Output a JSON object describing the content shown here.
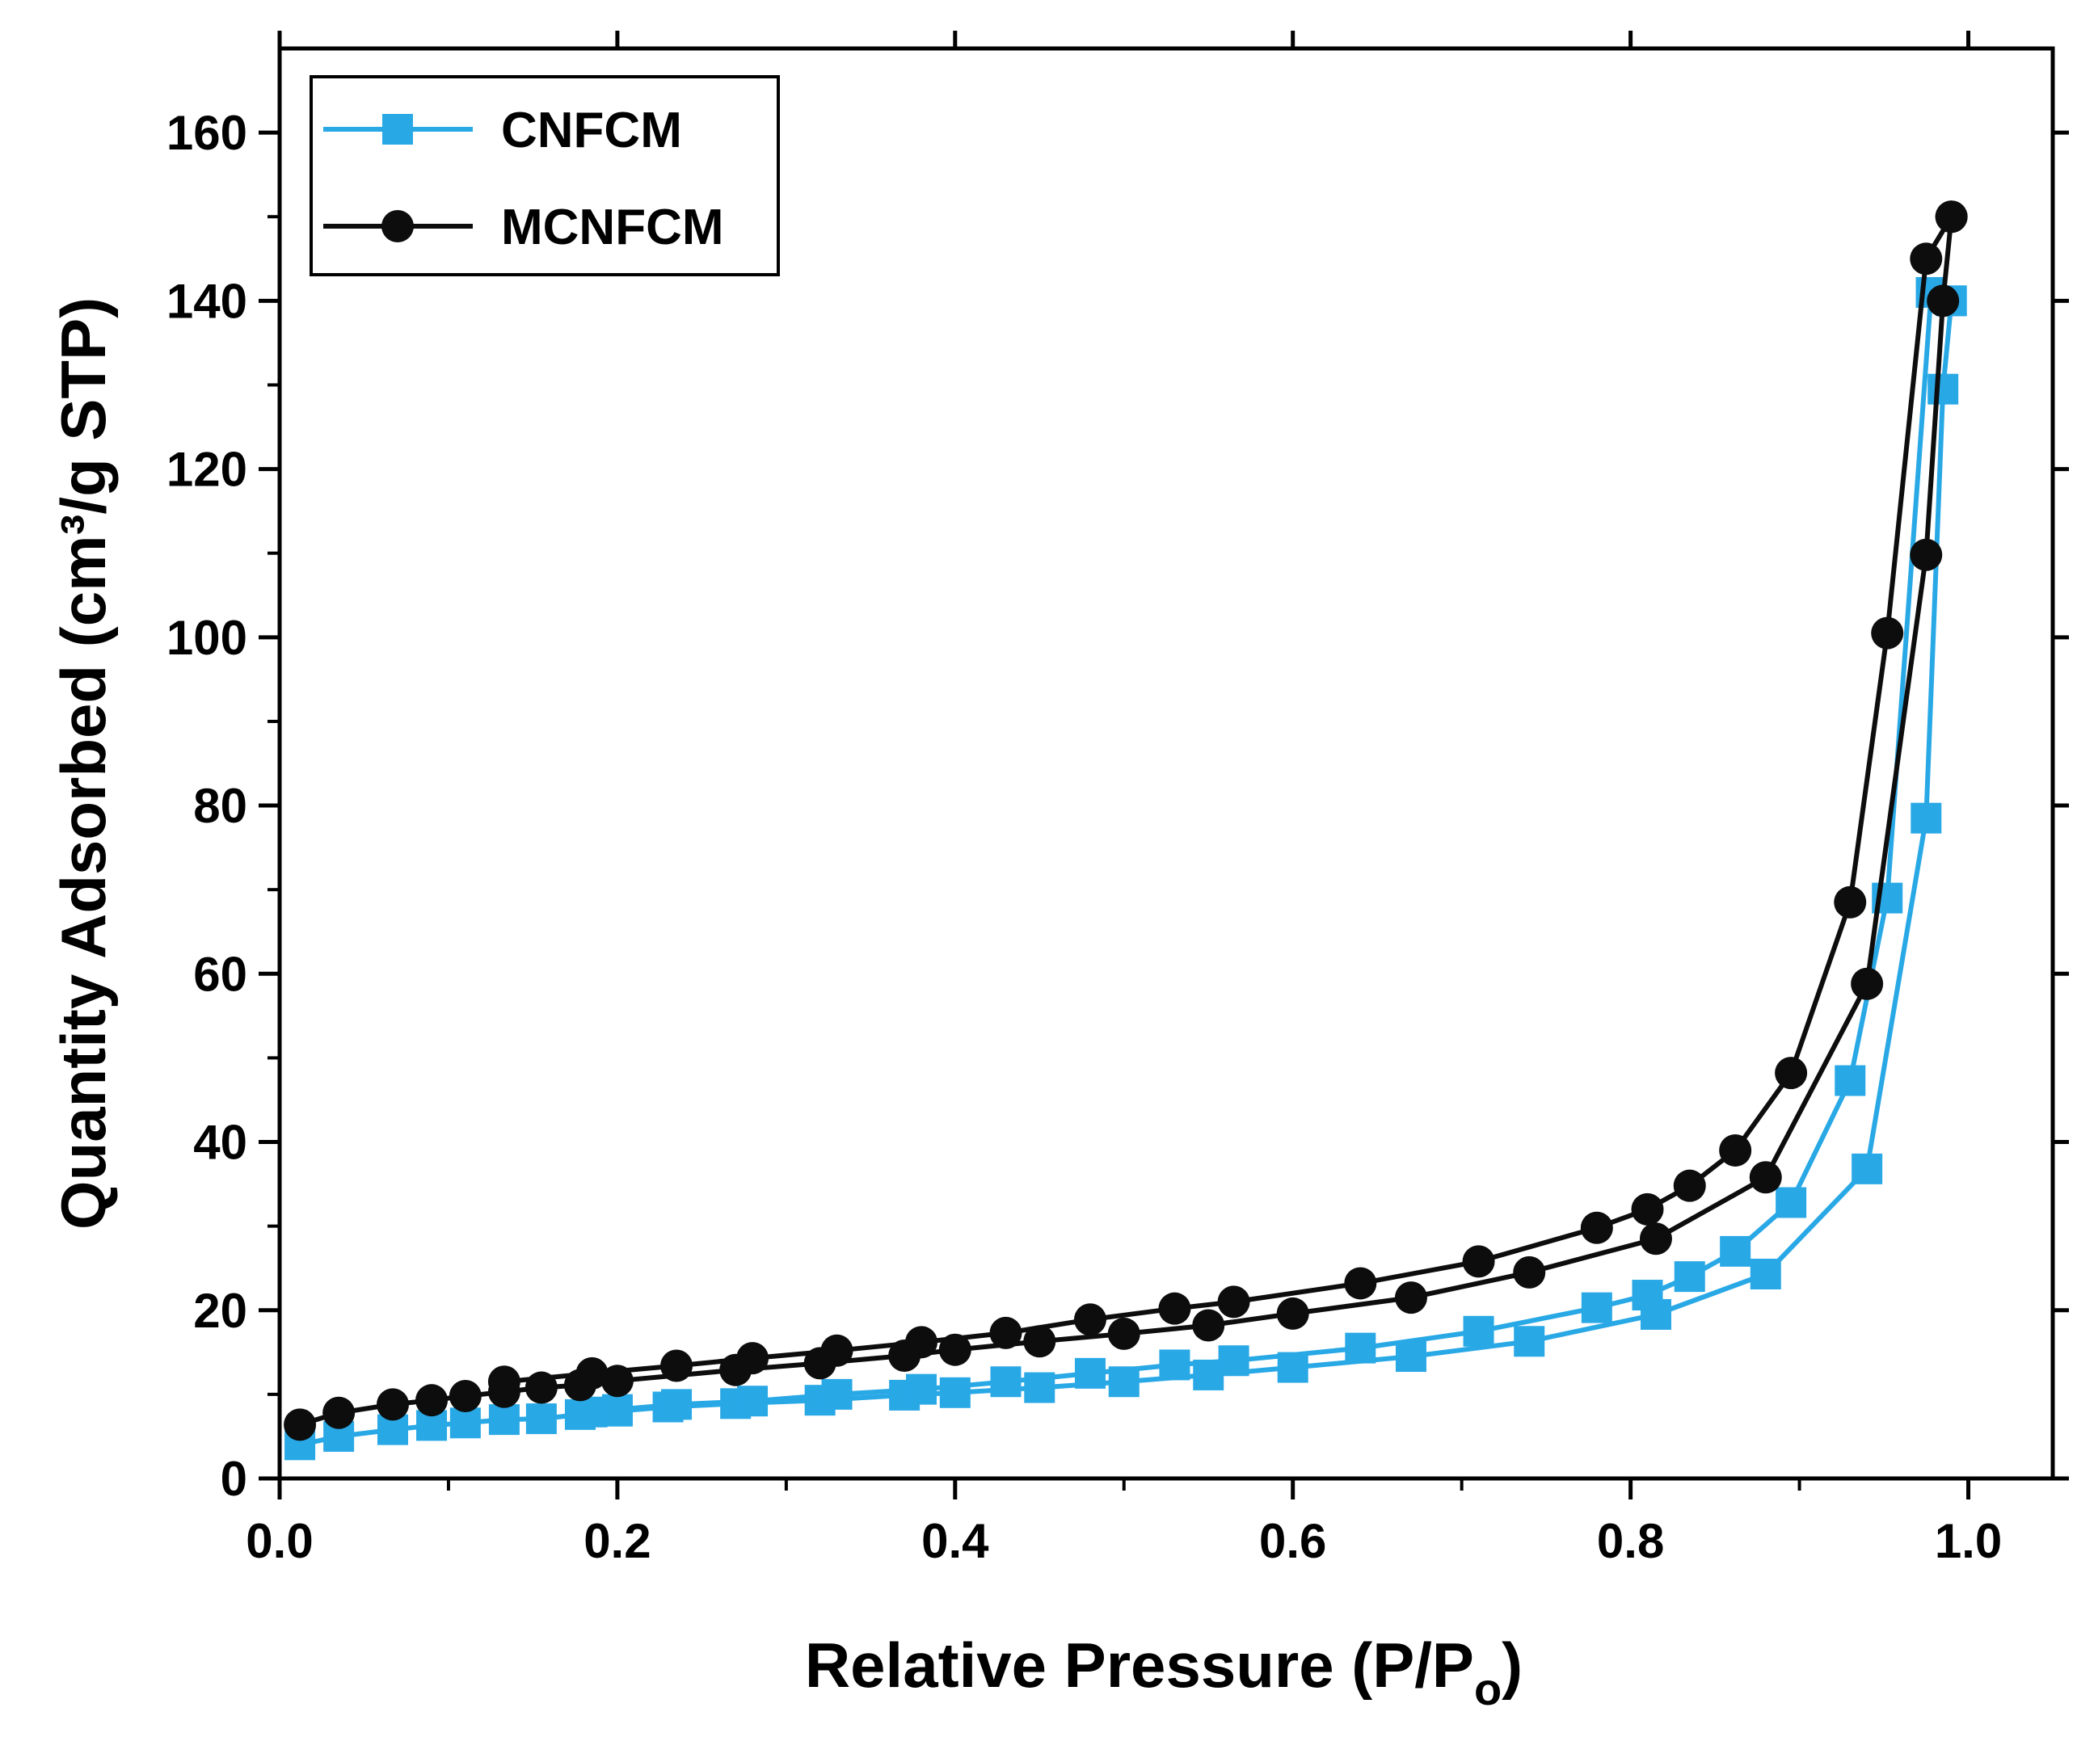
{
  "chart_data": {
    "type": "line",
    "title": "",
    "xlabel": "Relative Pressure (P/P",
    "xlabel_subscript": "o",
    "xlabel_close": ")",
    "ylabel": "Quantity Adsorbed (cm³/g STP)",
    "xlim": [
      0.0,
      1.05
    ],
    "ylim": [
      0,
      170
    ],
    "xticks": [
      0.0,
      0.2,
      0.4,
      0.6,
      0.8,
      1.0
    ],
    "xtick_labels": [
      "0.0",
      "0.2",
      "0.4",
      "0.6",
      "0.8",
      "1.0"
    ],
    "yticks": [
      0,
      20,
      40,
      60,
      80,
      100,
      120,
      140,
      160
    ],
    "ytick_labels": [
      "0",
      "20",
      "40",
      "60",
      "80",
      "100",
      "120",
      "140",
      "160"
    ],
    "grid": false,
    "legend_position": "top-left",
    "series": [
      {
        "name": "CNFCM",
        "color": "#29a8e6",
        "marker": "square",
        "adsorption": [
          {
            "x": 0.012,
            "y": 4.0
          },
          {
            "x": 0.035,
            "y": 5.0
          },
          {
            "x": 0.067,
            "y": 5.8
          },
          {
            "x": 0.09,
            "y": 6.3
          },
          {
            "x": 0.11,
            "y": 6.6
          },
          {
            "x": 0.133,
            "y": 7.0
          },
          {
            "x": 0.155,
            "y": 7.1
          },
          {
            "x": 0.178,
            "y": 7.6
          },
          {
            "x": 0.2,
            "y": 8.0
          },
          {
            "x": 0.23,
            "y": 8.5
          },
          {
            "x": 0.27,
            "y": 8.9
          },
          {
            "x": 0.32,
            "y": 9.3
          },
          {
            "x": 0.37,
            "y": 9.9
          },
          {
            "x": 0.4,
            "y": 10.2
          },
          {
            "x": 0.45,
            "y": 10.8
          },
          {
            "x": 0.5,
            "y": 11.5
          },
          {
            "x": 0.55,
            "y": 12.3
          },
          {
            "x": 0.6,
            "y": 13.2
          },
          {
            "x": 0.67,
            "y": 14.5
          },
          {
            "x": 0.74,
            "y": 16.3
          },
          {
            "x": 0.815,
            "y": 19.5
          },
          {
            "x": 0.88,
            "y": 24.3
          },
          {
            "x": 0.94,
            "y": 36.8
          },
          {
            "x": 0.975,
            "y": 78.5
          },
          {
            "x": 0.985,
            "y": 129.5
          },
          {
            "x": 0.99,
            "y": 140.0
          }
        ],
        "desorption": [
          {
            "x": 0.99,
            "y": 140.0
          },
          {
            "x": 0.978,
            "y": 141.0
          },
          {
            "x": 0.952,
            "y": 69.0
          },
          {
            "x": 0.93,
            "y": 47.3
          },
          {
            "x": 0.895,
            "y": 32.8
          },
          {
            "x": 0.862,
            "y": 27.0
          },
          {
            "x": 0.835,
            "y": 24.0
          },
          {
            "x": 0.81,
            "y": 21.8
          },
          {
            "x": 0.78,
            "y": 20.3
          },
          {
            "x": 0.71,
            "y": 17.5
          },
          {
            "x": 0.64,
            "y": 15.5
          },
          {
            "x": 0.565,
            "y": 14.0
          },
          {
            "x": 0.53,
            "y": 13.5
          },
          {
            "x": 0.48,
            "y": 12.5
          },
          {
            "x": 0.43,
            "y": 11.5
          },
          {
            "x": 0.38,
            "y": 10.6
          },
          {
            "x": 0.33,
            "y": 10.0
          },
          {
            "x": 0.28,
            "y": 9.2
          },
          {
            "x": 0.235,
            "y": 8.8
          },
          {
            "x": 0.2,
            "y": 8.2
          },
          {
            "x": 0.185,
            "y": 7.9
          }
        ]
      },
      {
        "name": "MCNFCM",
        "color": "#0d0d0d",
        "marker": "circle",
        "adsorption": [
          {
            "x": 0.012,
            "y": 6.4
          },
          {
            "x": 0.035,
            "y": 7.8
          },
          {
            "x": 0.067,
            "y": 8.8
          },
          {
            "x": 0.09,
            "y": 9.3
          },
          {
            "x": 0.11,
            "y": 9.8
          },
          {
            "x": 0.133,
            "y": 10.3
          },
          {
            "x": 0.155,
            "y": 10.8
          },
          {
            "x": 0.178,
            "y": 11.1
          },
          {
            "x": 0.2,
            "y": 11.6
          },
          {
            "x": 0.27,
            "y": 12.9
          },
          {
            "x": 0.32,
            "y": 13.7
          },
          {
            "x": 0.37,
            "y": 14.6
          },
          {
            "x": 0.4,
            "y": 15.3
          },
          {
            "x": 0.45,
            "y": 16.3
          },
          {
            "x": 0.5,
            "y": 17.2
          },
          {
            "x": 0.55,
            "y": 18.2
          },
          {
            "x": 0.6,
            "y": 19.6
          },
          {
            "x": 0.67,
            "y": 21.5
          },
          {
            "x": 0.74,
            "y": 24.5
          },
          {
            "x": 0.815,
            "y": 28.5
          },
          {
            "x": 0.88,
            "y": 35.8
          },
          {
            "x": 0.94,
            "y": 58.8
          },
          {
            "x": 0.975,
            "y": 109.8
          },
          {
            "x": 0.985,
            "y": 140.0
          },
          {
            "x": 0.99,
            "y": 150.0
          }
        ],
        "desorption": [
          {
            "x": 0.99,
            "y": 150.0
          },
          {
            "x": 0.975,
            "y": 145.0
          },
          {
            "x": 0.952,
            "y": 100.5
          },
          {
            "x": 0.93,
            "y": 68.5
          },
          {
            "x": 0.895,
            "y": 48.2
          },
          {
            "x": 0.862,
            "y": 39.0
          },
          {
            "x": 0.835,
            "y": 34.8
          },
          {
            "x": 0.81,
            "y": 32.0
          },
          {
            "x": 0.78,
            "y": 29.8
          },
          {
            "x": 0.71,
            "y": 25.8
          },
          {
            "x": 0.64,
            "y": 23.2
          },
          {
            "x": 0.565,
            "y": 21.0
          },
          {
            "x": 0.53,
            "y": 20.2
          },
          {
            "x": 0.48,
            "y": 18.9
          },
          {
            "x": 0.43,
            "y": 17.3
          },
          {
            "x": 0.38,
            "y": 16.2
          },
          {
            "x": 0.33,
            "y": 15.2
          },
          {
            "x": 0.28,
            "y": 14.3
          },
          {
            "x": 0.235,
            "y": 13.4
          },
          {
            "x": 0.185,
            "y": 12.5
          },
          {
            "x": 0.133,
            "y": 11.5
          }
        ]
      }
    ]
  }
}
